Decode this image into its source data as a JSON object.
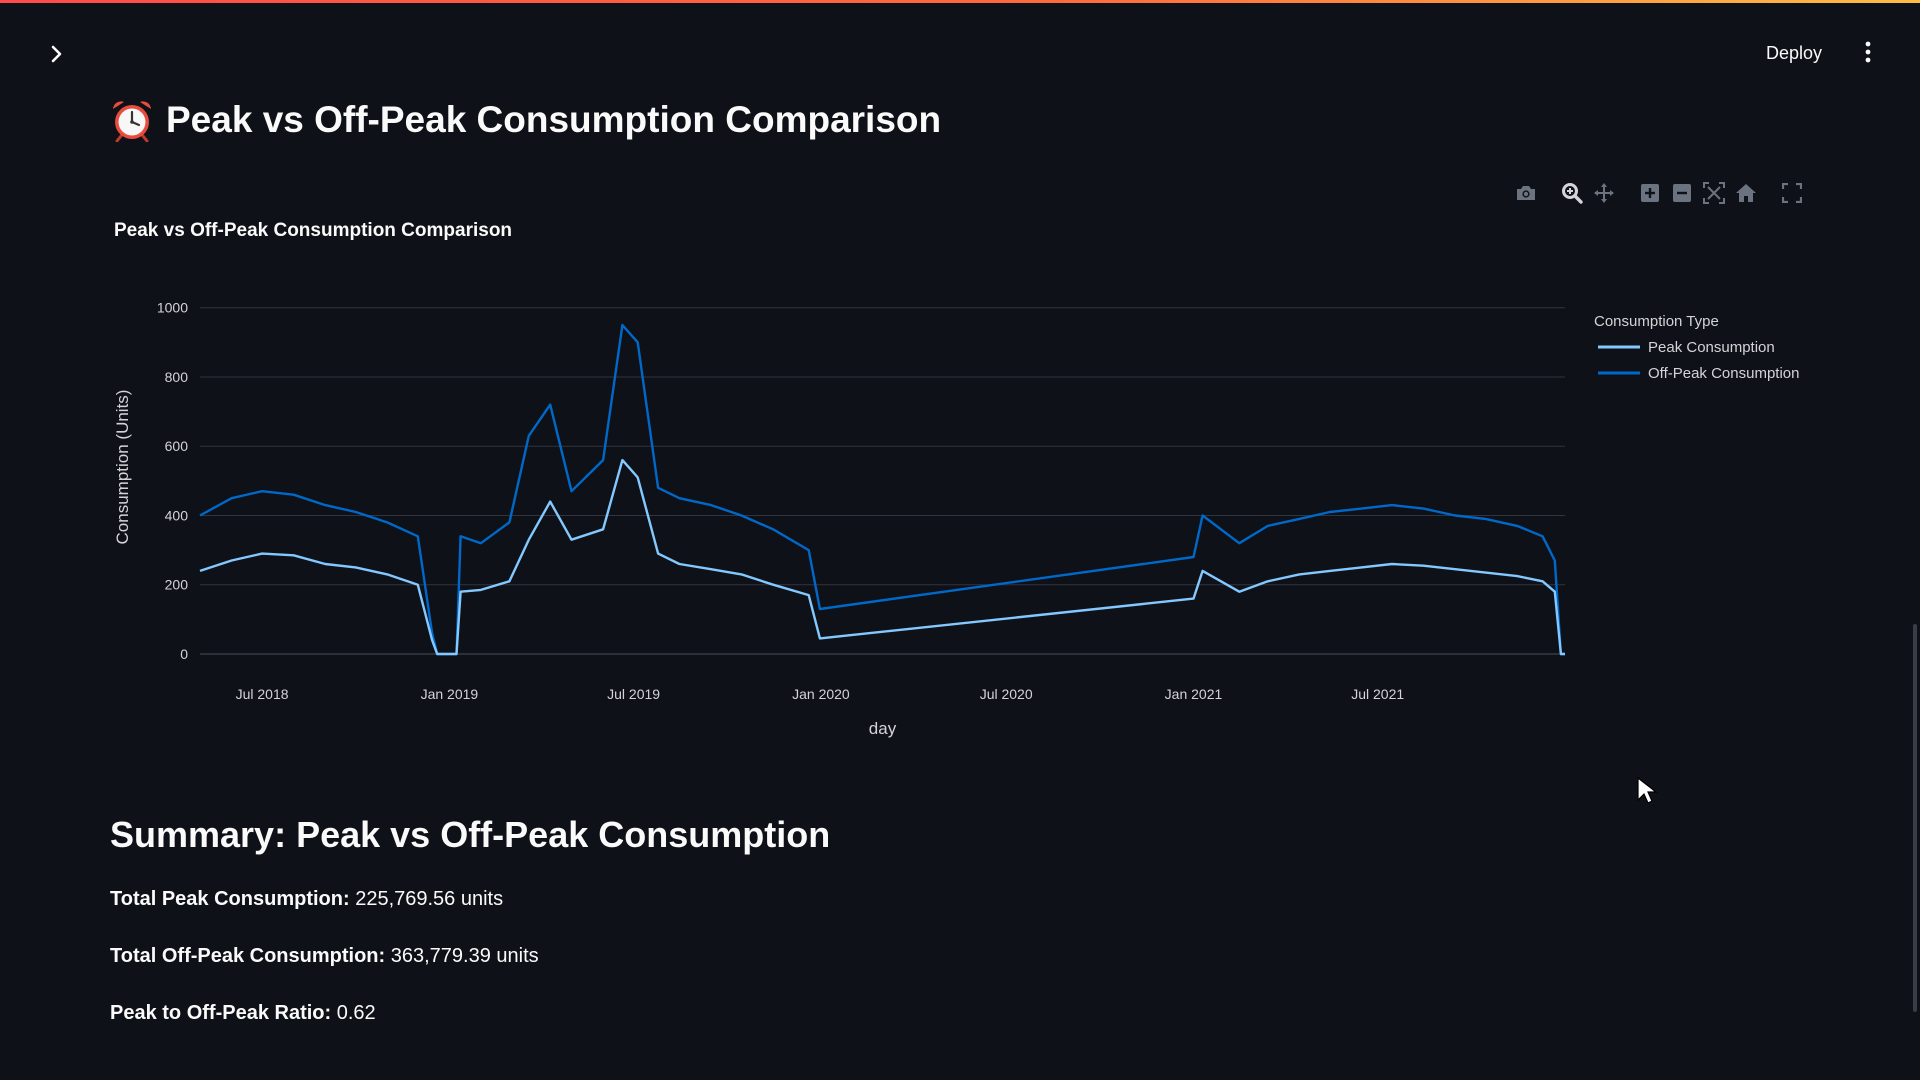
{
  "header": {
    "deploy_label": "Deploy",
    "sidebar_toggle_icon": "chevron-right-icon",
    "menu_icon": "more-vertical-icon"
  },
  "page": {
    "title_emoji": "alarm-clock-icon",
    "title": "Peak vs Off-Peak Consumption Comparison"
  },
  "modebar": [
    "camera-icon",
    "zoom-icon",
    "pan-icon",
    "zoom-in-icon",
    "zoom-out-icon",
    "autoscale-icon",
    "reset-axes-icon",
    "fullscreen-icon"
  ],
  "chart_data": {
    "type": "line",
    "title": "Peak vs Off-Peak Consumption Comparison",
    "xlabel": "day",
    "ylabel": "Consumption (Units)",
    "ylim": [
      0,
      1080
    ],
    "xlim": [
      "2018-05-01",
      "2022-01-01"
    ],
    "y_ticks": [
      0,
      200,
      400,
      600,
      800,
      1000
    ],
    "x_ticks": [
      {
        "date": "2018-07-01",
        "label": "Jul 2018"
      },
      {
        "date": "2019-01-01",
        "label": "Jan 2019"
      },
      {
        "date": "2019-07-01",
        "label": "Jul 2019"
      },
      {
        "date": "2020-01-01",
        "label": "Jan 2020"
      },
      {
        "date": "2020-07-01",
        "label": "Jul 2020"
      },
      {
        "date": "2021-01-01",
        "label": "Jan 2021"
      },
      {
        "date": "2021-07-01",
        "label": "Jul 2021"
      }
    ],
    "grid": "horizontal",
    "legend": {
      "title": "Consumption Type",
      "position": "right"
    },
    "series": [
      {
        "name": "Peak Consumption",
        "color": "#83c9ff",
        "points": [
          [
            "2018-05-01",
            240
          ],
          [
            "2018-06-01",
            270
          ],
          [
            "2018-07-01",
            290
          ],
          [
            "2018-08-01",
            285
          ],
          [
            "2018-09-01",
            260
          ],
          [
            "2018-10-01",
            250
          ],
          [
            "2018-11-01",
            230
          ],
          [
            "2018-12-01",
            200
          ],
          [
            "2018-12-15",
            40
          ],
          [
            "2018-12-20",
            0
          ],
          [
            "2019-01-08",
            0
          ],
          [
            "2019-01-12",
            180
          ],
          [
            "2019-02-01",
            185
          ],
          [
            "2019-03-01",
            210
          ],
          [
            "2019-03-20",
            330
          ],
          [
            "2019-04-10",
            440
          ],
          [
            "2019-05-01",
            330
          ],
          [
            "2019-06-01",
            360
          ],
          [
            "2019-06-20",
            560
          ],
          [
            "2019-07-05",
            510
          ],
          [
            "2019-07-25",
            290
          ],
          [
            "2019-08-15",
            260
          ],
          [
            "2019-09-15",
            245
          ],
          [
            "2019-10-15",
            230
          ],
          [
            "2019-11-15",
            200
          ],
          [
            "2019-12-20",
            170
          ],
          [
            "2019-12-31",
            45
          ],
          [
            "2021-01-01",
            160
          ],
          [
            "2021-01-10",
            240
          ],
          [
            "2021-02-15",
            180
          ],
          [
            "2021-03-15",
            210
          ],
          [
            "2021-04-15",
            230
          ],
          [
            "2021-05-15",
            240
          ],
          [
            "2021-06-15",
            250
          ],
          [
            "2021-07-15",
            260
          ],
          [
            "2021-08-15",
            255
          ],
          [
            "2021-09-15",
            245
          ],
          [
            "2021-10-15",
            235
          ],
          [
            "2021-11-15",
            225
          ],
          [
            "2021-12-10",
            210
          ],
          [
            "2021-12-22",
            180
          ],
          [
            "2021-12-28",
            0
          ],
          [
            "2022-01-01",
            0
          ]
        ]
      },
      {
        "name": "Off-Peak Consumption",
        "color": "#0068c9",
        "points": [
          [
            "2018-05-01",
            400
          ],
          [
            "2018-06-01",
            450
          ],
          [
            "2018-07-01",
            470
          ],
          [
            "2018-08-01",
            460
          ],
          [
            "2018-09-01",
            430
          ],
          [
            "2018-10-01",
            410
          ],
          [
            "2018-11-01",
            380
          ],
          [
            "2018-12-01",
            340
          ],
          [
            "2018-12-15",
            60
          ],
          [
            "2018-12-20",
            0
          ],
          [
            "2019-01-08",
            0
          ],
          [
            "2019-01-12",
            340
          ],
          [
            "2019-02-01",
            320
          ],
          [
            "2019-03-01",
            380
          ],
          [
            "2019-03-20",
            630
          ],
          [
            "2019-04-10",
            720
          ],
          [
            "2019-05-01",
            470
          ],
          [
            "2019-06-01",
            560
          ],
          [
            "2019-06-20",
            950
          ],
          [
            "2019-07-05",
            900
          ],
          [
            "2019-07-25",
            480
          ],
          [
            "2019-08-15",
            450
          ],
          [
            "2019-09-15",
            430
          ],
          [
            "2019-10-15",
            400
          ],
          [
            "2019-11-15",
            360
          ],
          [
            "2019-12-20",
            300
          ],
          [
            "2019-12-31",
            130
          ],
          [
            "2021-01-01",
            280
          ],
          [
            "2021-01-10",
            400
          ],
          [
            "2021-02-15",
            320
          ],
          [
            "2021-03-15",
            370
          ],
          [
            "2021-04-15",
            390
          ],
          [
            "2021-05-15",
            410
          ],
          [
            "2021-06-15",
            420
          ],
          [
            "2021-07-15",
            430
          ],
          [
            "2021-08-15",
            420
          ],
          [
            "2021-09-15",
            400
          ],
          [
            "2021-10-15",
            390
          ],
          [
            "2021-11-15",
            370
          ],
          [
            "2021-12-10",
            340
          ],
          [
            "2021-12-22",
            270
          ],
          [
            "2021-12-28",
            0
          ],
          [
            "2022-01-01",
            0
          ]
        ]
      }
    ]
  },
  "summary": {
    "title": "Summary: Peak vs Off-Peak Consumption",
    "total_peak_label": "Total Peak Consumption:",
    "total_peak_value": "225,769.56 units",
    "total_offpeak_label": "Total Off-Peak Consumption:",
    "total_offpeak_value": "363,779.39 units",
    "ratio_label": "Peak to Off-Peak Ratio:",
    "ratio_value": "0.62"
  },
  "colors": {
    "background": "#0e1117",
    "peak": "#83c9ff",
    "offpeak": "#0068c9",
    "gridline": "#31333f"
  }
}
